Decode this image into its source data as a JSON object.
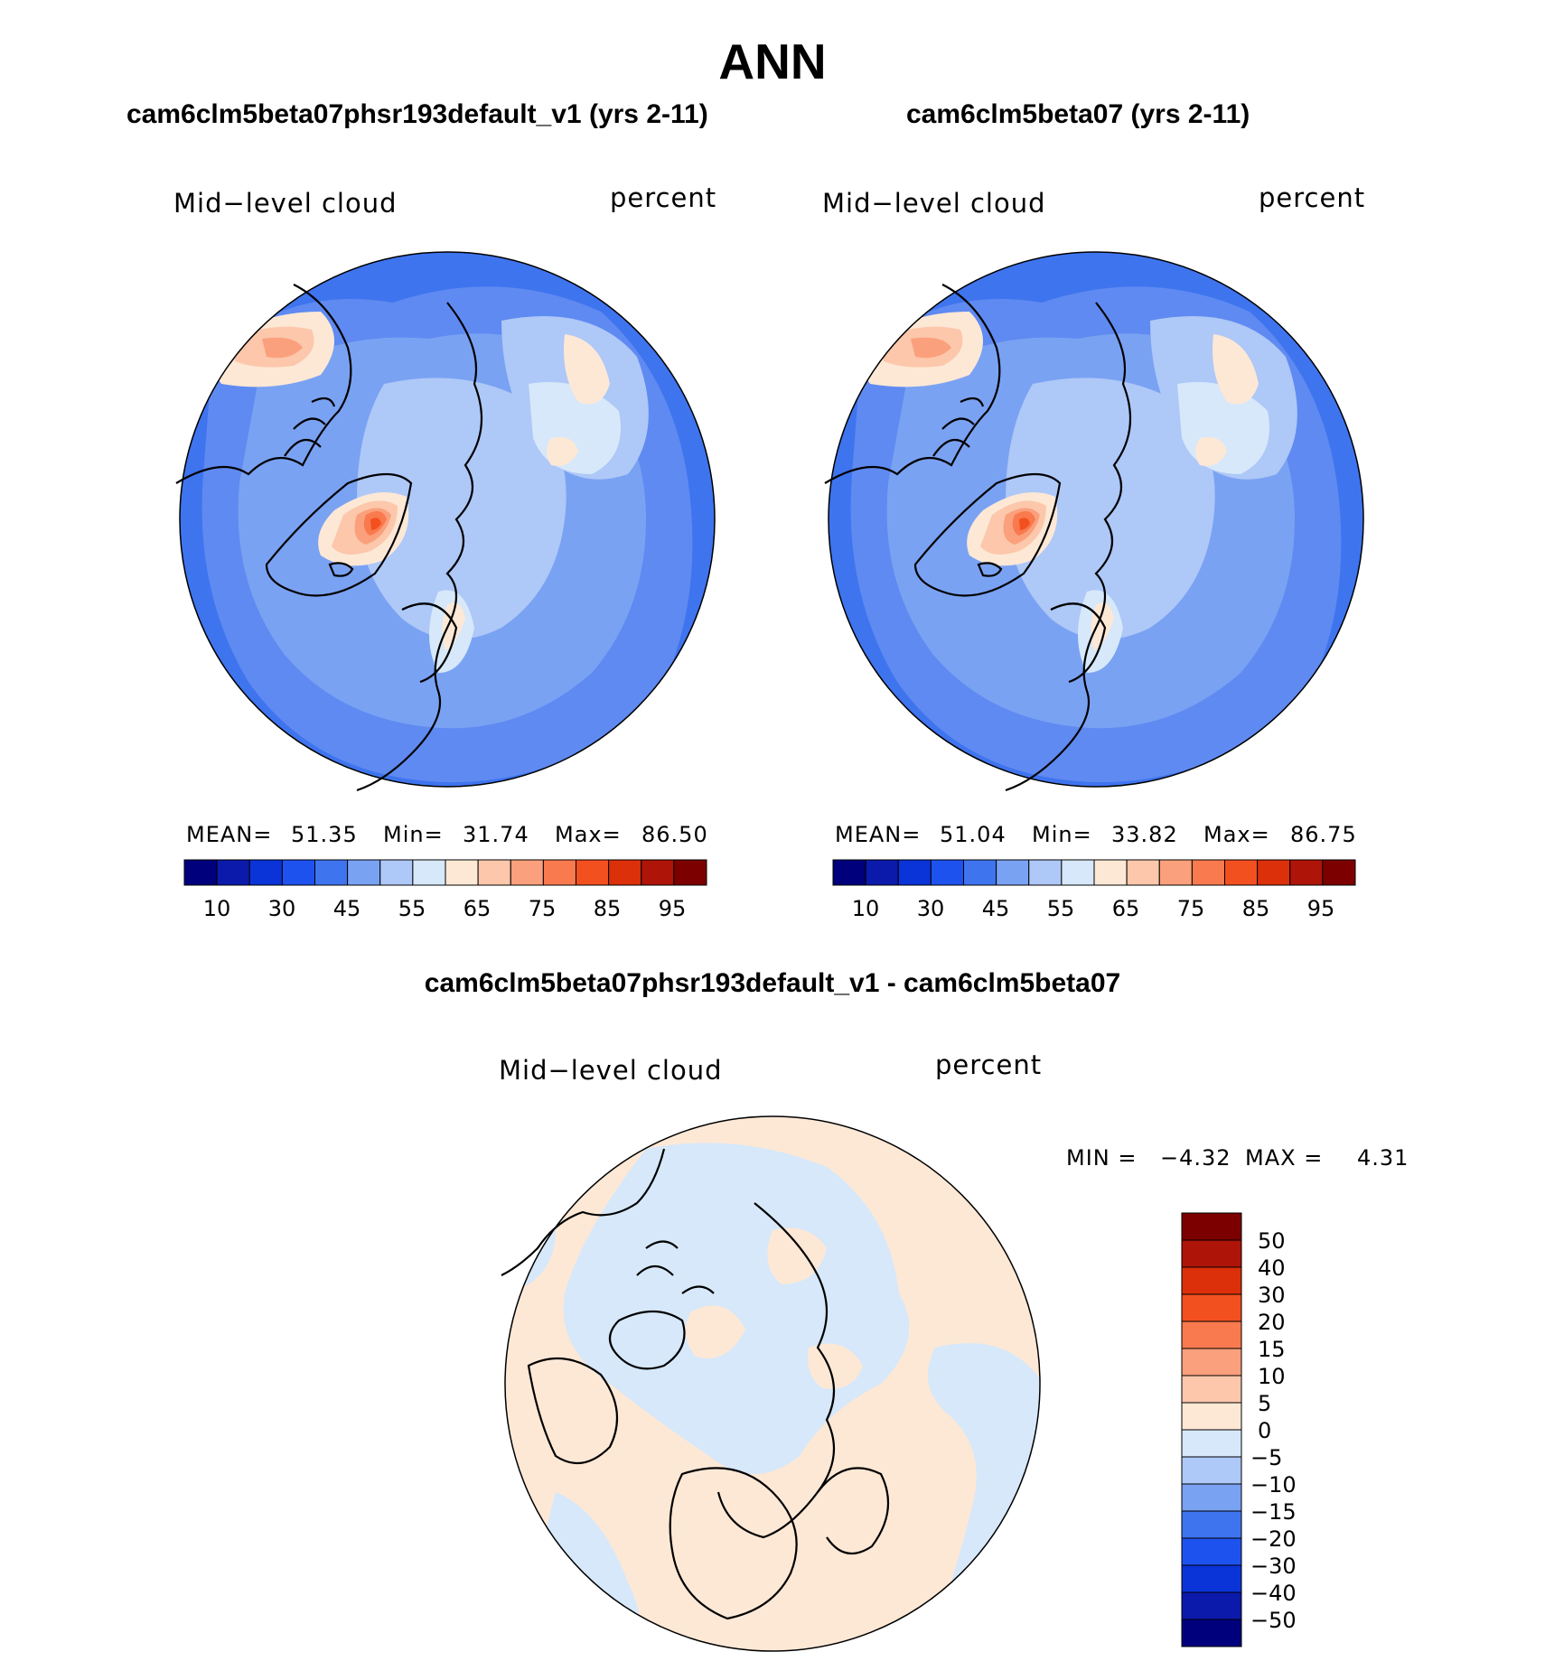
{
  "figure": {
    "title": "ANN"
  },
  "panels": [
    {
      "title": "cam6clm5beta07phsr193default_v1 (yrs 2-11)",
      "variable": "Mid−level cloud",
      "units": "percent",
      "stats": {
        "mean_label": "MEAN=",
        "mean": "51.35",
        "min_label": "Min=",
        "min": "31.74",
        "max_label": "Max=",
        "max": "86.50"
      }
    },
    {
      "title": "cam6clm5beta07 (yrs 2-11)",
      "variable": "Mid−level cloud",
      "units": "percent",
      "stats": {
        "mean_label": "MEAN=",
        "mean": "51.04",
        "min_label": "Min=",
        "min": "33.82",
        "max_label": "Max=",
        "max": "86.75"
      }
    },
    {
      "title": "cam6clm5beta07phsr193default_v1 - cam6clm5beta07",
      "variable": "Mid−level cloud",
      "units": "percent",
      "stats": {
        "min_label": "MIN =",
        "min": "−4.32",
        "max_label": "MAX =",
        "max": "4.31"
      }
    }
  ],
  "colorbar_main": {
    "tick_labels": [
      "10",
      "30",
      "45",
      "55",
      "65",
      "75",
      "85",
      "95"
    ],
    "colors": [
      "#00007d",
      "#0b1aab",
      "#0a34d8",
      "#1e52ef",
      "#3f74ef",
      "#7aa2f3",
      "#aec8f7",
      "#d6e8fa",
      "#fde8d6",
      "#fcc7ab",
      "#fba07c",
      "#f97a4e",
      "#f3501f",
      "#dc300a",
      "#ae1408",
      "#7d0000"
    ]
  },
  "colorbar_diff": {
    "tick_labels": [
      "50",
      "40",
      "30",
      "20",
      "15",
      "10",
      "5",
      "0",
      "−5",
      "−10",
      "−15",
      "−20",
      "−30",
      "−40",
      "−50"
    ],
    "colors": [
      "#7d0000",
      "#ae1408",
      "#dc300a",
      "#f3501f",
      "#f97a4e",
      "#fba07c",
      "#fcc7ab",
      "#fde8d6",
      "#d6e8fa",
      "#aec8f7",
      "#7aa2f3",
      "#3f74ef",
      "#1e52ef",
      "#0a34d8",
      "#0b1aab",
      "#00007d"
    ]
  },
  "map_colors": {
    "c40": "#3f74ef",
    "c45": "#5f8af1",
    "c50": "#7aa2f3",
    "c55": "#aec8f7",
    "c60": "#d6e8fa",
    "c65": "#fde8d6",
    "c70": "#fcc7ab",
    "c75": "#fba07c",
    "c80": "#f97a4e",
    "c85": "#f3501f",
    "c90": "#dc300a",
    "dneg": "#d6e8fa",
    "dpos": "#fde8d6"
  }
}
